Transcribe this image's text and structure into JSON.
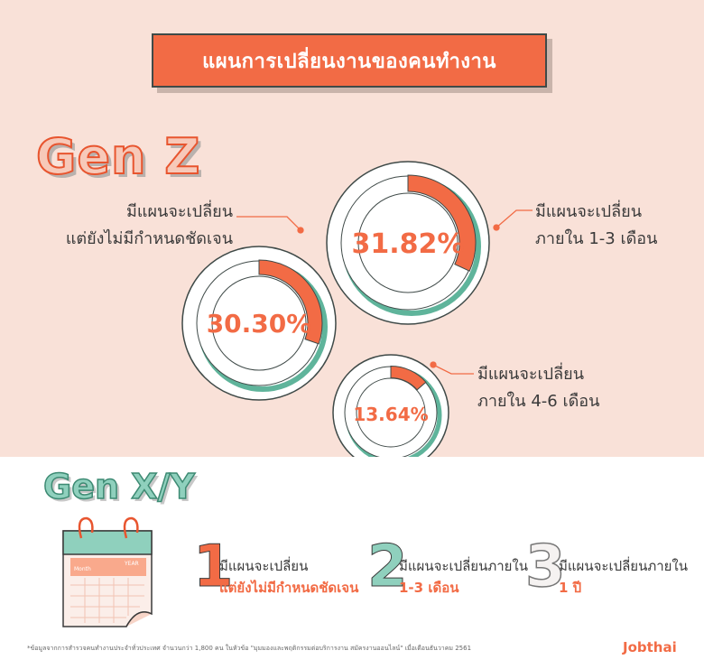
{
  "title": "แผนการเปลี่ยนงานของคนทำงาน",
  "gen_z": {
    "heading": "Gen Z",
    "donuts": [
      {
        "value_label": "30.30%",
        "fraction": 0.303,
        "caption_line1": "มีแผนจะเปลี่ยน",
        "caption_line2": "แต่ยังไม่มีกำหนดชัดเจน"
      },
      {
        "value_label": "31.82%",
        "fraction": 0.3182,
        "caption_line1": "มีแผนจะเปลี่ยน",
        "caption_line2": "ภายใน 1-3 เดือน"
      },
      {
        "value_label": "13.64%",
        "fraction": 0.1364,
        "caption_line1": "มีแผนจะเปลี่ยน",
        "caption_line2": "ภายใน 4-6 เดือน"
      }
    ]
  },
  "gen_xy": {
    "heading": "Gen X/Y",
    "calendar": {
      "month_label": "Month",
      "year_label": "YEAR"
    },
    "rankings": [
      {
        "number": "1",
        "line1": "มีแผนจะเปลี่ยน",
        "line2": "แต่ยังไม่มีกำหนดชัดเจน"
      },
      {
        "number": "2",
        "line1": "มีแผนจะเปลี่ยนภายใน",
        "line2": "1-3 เดือน"
      },
      {
        "number": "3",
        "line1": "มีแผนจะเปลี่ยนภายใน",
        "line2": "1 ปี"
      }
    ]
  },
  "footnote": "*ข้อมูลจากการสำรวจคนทำงานประจำทั่วประเทศ จำนวนกว่า 1,800 คน ในหัวข้อ \"มุมมองและพฤติกรรมต่อบริการงาน สมัครงานออนไลน์\" เมื่อเดือนธันวาคม 2561",
  "brand": "Jobthai",
  "colors": {
    "accent": "#f26b45",
    "teal": "#5fb49b",
    "background_top": "#f9e1d8",
    "ring": "#ffffff"
  }
}
